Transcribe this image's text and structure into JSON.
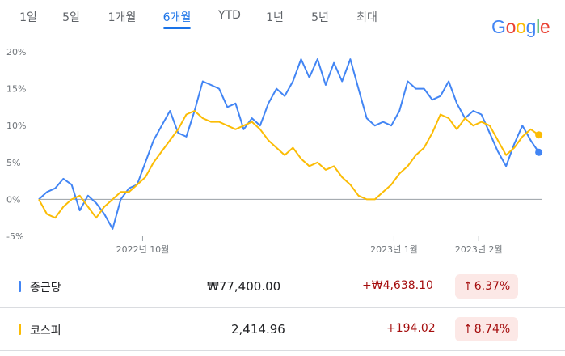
{
  "tabs": [
    {
      "label": "1일",
      "active": false
    },
    {
      "label": "5일",
      "active": false
    },
    {
      "label": "1개월",
      "active": false
    },
    {
      "label": "6개월",
      "active": true
    },
    {
      "label": "YTD",
      "active": false
    },
    {
      "label": "1년",
      "active": false
    },
    {
      "label": "5년",
      "active": false
    },
    {
      "label": "최대",
      "active": false
    }
  ],
  "logo": {
    "letters": [
      "G",
      "o",
      "o",
      "g",
      "l",
      "e"
    ],
    "colors": [
      "#4285f4",
      "#ea4335",
      "#fbbc05",
      "#4285f4",
      "#34a853",
      "#ea4335"
    ]
  },
  "chart_data": {
    "type": "line",
    "ylim": [
      -5,
      20
    ],
    "yticks": [
      "20%",
      "15%",
      "10%",
      "5%",
      "0%",
      "-5%"
    ],
    "ytick_values": [
      20,
      15,
      10,
      5,
      0,
      -5
    ],
    "xticks": [
      {
        "label": "2022년 10월",
        "date": "2022-10-01"
      },
      {
        "label": "2023년 1월",
        "date": "2023-01-01"
      },
      {
        "label": "2023년 2월",
        "date": "2023-02-01"
      }
    ],
    "x_range": [
      "2022-08-24",
      "2023-02-24"
    ],
    "grid": false,
    "series": [
      {
        "name": "종근당",
        "color": "#4285f4",
        "points": [
          [
            "2022-08-24",
            0.0
          ],
          [
            "2022-08-27",
            1.0
          ],
          [
            "2022-08-30",
            1.5
          ],
          [
            "2022-09-02",
            2.8
          ],
          [
            "2022-09-05",
            2.0
          ],
          [
            "2022-09-08",
            -1.5
          ],
          [
            "2022-09-11",
            0.5
          ],
          [
            "2022-09-14",
            -0.5
          ],
          [
            "2022-09-17",
            -2.0
          ],
          [
            "2022-09-20",
            -4.0
          ],
          [
            "2022-09-23",
            0.0
          ],
          [
            "2022-09-26",
            1.5
          ],
          [
            "2022-09-29",
            2.0
          ],
          [
            "2022-10-02",
            5.0
          ],
          [
            "2022-10-05",
            8.0
          ],
          [
            "2022-10-08",
            10.0
          ],
          [
            "2022-10-11",
            12.0
          ],
          [
            "2022-10-14",
            9.0
          ],
          [
            "2022-10-17",
            8.5
          ],
          [
            "2022-10-20",
            12.0
          ],
          [
            "2022-10-23",
            16.0
          ],
          [
            "2022-10-26",
            15.5
          ],
          [
            "2022-10-29",
            15.0
          ],
          [
            "2022-11-01",
            12.5
          ],
          [
            "2022-11-04",
            13.0
          ],
          [
            "2022-11-07",
            9.5
          ],
          [
            "2022-11-10",
            11.0
          ],
          [
            "2022-11-13",
            10.0
          ],
          [
            "2022-11-16",
            13.0
          ],
          [
            "2022-11-19",
            15.0
          ],
          [
            "2022-11-22",
            14.0
          ],
          [
            "2022-11-25",
            16.0
          ],
          [
            "2022-11-28",
            19.0
          ],
          [
            "2022-12-01",
            16.5
          ],
          [
            "2022-12-04",
            19.0
          ],
          [
            "2022-12-07",
            15.5
          ],
          [
            "2022-12-10",
            18.5
          ],
          [
            "2022-12-13",
            16.0
          ],
          [
            "2022-12-16",
            19.0
          ],
          [
            "2022-12-19",
            15.0
          ],
          [
            "2022-12-22",
            11.0
          ],
          [
            "2022-12-25",
            10.0
          ],
          [
            "2022-12-28",
            10.5
          ],
          [
            "2022-12-31",
            10.0
          ],
          [
            "2023-01-03",
            12.0
          ],
          [
            "2023-01-06",
            16.0
          ],
          [
            "2023-01-09",
            15.0
          ],
          [
            "2023-01-12",
            15.0
          ],
          [
            "2023-01-15",
            13.5
          ],
          [
            "2023-01-18",
            14.0
          ],
          [
            "2023-01-21",
            16.0
          ],
          [
            "2023-01-24",
            13.0
          ],
          [
            "2023-01-27",
            11.0
          ],
          [
            "2023-01-30",
            12.0
          ],
          [
            "2023-02-02",
            11.5
          ],
          [
            "2023-02-05",
            9.0
          ],
          [
            "2023-02-08",
            6.5
          ],
          [
            "2023-02-11",
            4.5
          ],
          [
            "2023-02-14",
            7.5
          ],
          [
            "2023-02-17",
            10.0
          ],
          [
            "2023-02-20",
            8.0
          ],
          [
            "2023-02-23",
            6.37
          ]
        ]
      },
      {
        "name": "코스피",
        "color": "#fbbc05",
        "points": [
          [
            "2022-08-24",
            0.0
          ],
          [
            "2022-08-27",
            -2.0
          ],
          [
            "2022-08-30",
            -2.5
          ],
          [
            "2022-09-02",
            -1.0
          ],
          [
            "2022-09-05",
            0.0
          ],
          [
            "2022-09-08",
            0.5
          ],
          [
            "2022-09-11",
            -1.0
          ],
          [
            "2022-09-14",
            -2.5
          ],
          [
            "2022-09-17",
            -1.0
          ],
          [
            "2022-09-20",
            0.0
          ],
          [
            "2022-09-23",
            1.0
          ],
          [
            "2022-09-26",
            1.0
          ],
          [
            "2022-09-29",
            2.0
          ],
          [
            "2022-10-02",
            3.0
          ],
          [
            "2022-10-05",
            5.0
          ],
          [
            "2022-10-08",
            6.5
          ],
          [
            "2022-10-11",
            8.0
          ],
          [
            "2022-10-14",
            9.5
          ],
          [
            "2022-10-17",
            11.5
          ],
          [
            "2022-10-20",
            12.0
          ],
          [
            "2022-10-23",
            11.0
          ],
          [
            "2022-10-26",
            10.5
          ],
          [
            "2022-10-29",
            10.5
          ],
          [
            "2022-11-01",
            10.0
          ],
          [
            "2022-11-04",
            9.5
          ],
          [
            "2022-11-07",
            10.0
          ],
          [
            "2022-11-10",
            10.5
          ],
          [
            "2022-11-13",
            9.5
          ],
          [
            "2022-11-16",
            8.0
          ],
          [
            "2022-11-19",
            7.0
          ],
          [
            "2022-11-22",
            6.0
          ],
          [
            "2022-11-25",
            7.0
          ],
          [
            "2022-11-28",
            5.5
          ],
          [
            "2022-12-01",
            4.5
          ],
          [
            "2022-12-04",
            5.0
          ],
          [
            "2022-12-07",
            4.0
          ],
          [
            "2022-12-10",
            4.5
          ],
          [
            "2022-12-13",
            3.0
          ],
          [
            "2022-12-16",
            2.0
          ],
          [
            "2022-12-19",
            0.5
          ],
          [
            "2022-12-22",
            0.0
          ],
          [
            "2022-12-25",
            0.0
          ],
          [
            "2022-12-28",
            1.0
          ],
          [
            "2022-12-31",
            2.0
          ],
          [
            "2023-01-03",
            3.5
          ],
          [
            "2023-01-06",
            4.5
          ],
          [
            "2023-01-09",
            6.0
          ],
          [
            "2023-01-12",
            7.0
          ],
          [
            "2023-01-15",
            9.0
          ],
          [
            "2023-01-18",
            11.5
          ],
          [
            "2023-01-21",
            11.0
          ],
          [
            "2023-01-24",
            9.5
          ],
          [
            "2023-01-27",
            11.0
          ],
          [
            "2023-01-30",
            10.0
          ],
          [
            "2023-02-02",
            10.5
          ],
          [
            "2023-02-05",
            10.0
          ],
          [
            "2023-02-08",
            8.0
          ],
          [
            "2023-02-11",
            6.0
          ],
          [
            "2023-02-14",
            7.0
          ],
          [
            "2023-02-17",
            8.5
          ],
          [
            "2023-02-20",
            9.5
          ],
          [
            "2023-02-23",
            8.74
          ]
        ]
      }
    ]
  },
  "rows": [
    {
      "name": "종근당",
      "color": "#4285f4",
      "price": "₩77,400.00",
      "change": "+₩4,638.10",
      "arrow": "↑",
      "pct": "6.37%"
    },
    {
      "name": "코스피",
      "color": "#fbbc05",
      "price": "2,414.96",
      "change": "+194.02",
      "arrow": "↑",
      "pct": "8.74%"
    }
  ]
}
